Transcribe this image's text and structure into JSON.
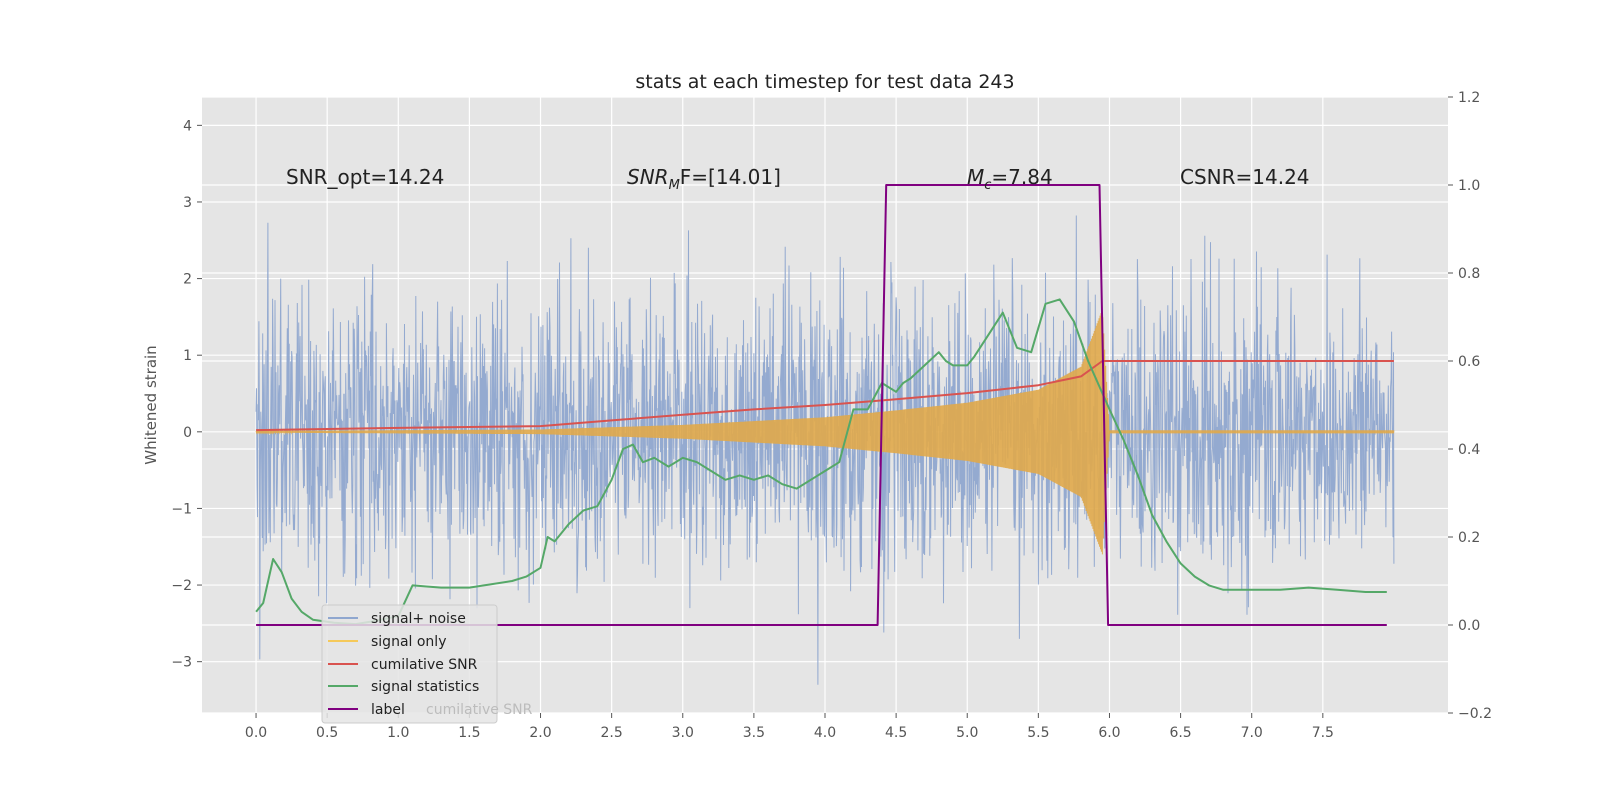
{
  "chart_data": {
    "type": "line",
    "title": "stats at each timestep for test data 243",
    "ylabel": "Whitened strain",
    "xlabel": "",
    "xlim": [
      -0.38,
      8.38
    ],
    "ylim": [
      -3.67,
      4.37
    ],
    "y2lim": [
      -0.2,
      1.2
    ],
    "grid": true,
    "legend_position": "lower-left",
    "x_ticks": [
      0.0,
      0.5,
      1.0,
      1.5,
      2.0,
      2.5,
      3.0,
      3.5,
      4.0,
      4.5,
      5.0,
      5.5,
      6.0,
      6.5,
      7.0,
      7.5
    ],
    "x_tick_labels": [
      "0.0",
      "0.5",
      "1.0",
      "1.5",
      "2.0",
      "2.5",
      "3.0",
      "3.5",
      "4.0",
      "4.5",
      "5.0",
      "5.5",
      "6.0",
      "6.5",
      "7.0",
      "7.5"
    ],
    "y_ticks": [
      -3,
      -2,
      -1,
      0,
      1,
      2,
      3,
      4
    ],
    "y_tick_labels": [
      "−3",
      "−2",
      "−1",
      "0",
      "1",
      "2",
      "3",
      "4"
    ],
    "y2_ticks": [
      -0.2,
      0.0,
      0.2,
      0.4,
      0.6,
      0.8,
      1.0,
      1.2
    ],
    "y2_tick_labels": [
      "−0.2",
      "0.0",
      "0.2",
      "0.4",
      "0.6",
      "0.8",
      "1.0",
      "1.2"
    ],
    "annotations": [
      {
        "text": "SNR_opt=14.24",
        "x": 0.2,
        "y": 3.3
      },
      {
        "text_main": "SNR",
        "text_sub": "M",
        "text_tail": "F=[14.01]",
        "x": 2.6,
        "y": 3.3
      },
      {
        "text_main": "M",
        "text_sub": "c",
        "text_tail": "=7.84",
        "x": 5.0,
        "y": 3.3
      },
      {
        "text": "CSNR=14.24",
        "x": 6.5,
        "y": 3.3
      }
    ],
    "series": [
      {
        "name": "signal+ noise",
        "color": "#8fa7cf",
        "axis": "left",
        "description": "whitened noise plus signal, roughly Gaussian with std ~0.9, t from 0 to 8",
        "x_range": [
          0.0,
          8.0
        ],
        "std": 0.9
      },
      {
        "name": "signal only",
        "color": "#e0a84a",
        "axis": "left",
        "description": "chirp signal; amplitude grows until merger near t=5.95",
        "x": [
          0.0,
          2.0,
          3.0,
          4.0,
          4.5,
          5.0,
          5.5,
          5.8,
          5.95,
          6.0,
          8.0
        ],
        "amplitude": [
          0.01,
          0.03,
          0.09,
          0.19,
          0.28,
          0.38,
          0.55,
          0.85,
          1.6,
          0.02,
          0.02
        ]
      },
      {
        "name": "cumilative SNR",
        "color": "#d9534f",
        "axis": "right",
        "x": [
          0.0,
          1.0,
          2.0,
          2.5,
          3.0,
          3.5,
          4.0,
          4.5,
          5.0,
          5.5,
          5.8,
          5.95,
          6.0,
          8.0
        ],
        "y": [
          0.443,
          0.448,
          0.452,
          0.465,
          0.478,
          0.49,
          0.5,
          0.513,
          0.527,
          0.545,
          0.565,
          0.6,
          0.6,
          0.6
        ]
      },
      {
        "name": "signal statistics",
        "color": "#55a868",
        "axis": "right",
        "x": [
          0.0,
          0.05,
          0.12,
          0.18,
          0.25,
          0.32,
          0.4,
          0.55,
          0.7,
          0.85,
          1.0,
          1.1,
          1.3,
          1.5,
          1.8,
          1.9,
          2.0,
          2.05,
          2.1,
          2.2,
          2.3,
          2.4,
          2.5,
          2.58,
          2.65,
          2.72,
          2.8,
          2.9,
          3.0,
          3.1,
          3.2,
          3.3,
          3.4,
          3.5,
          3.6,
          3.7,
          3.8,
          3.9,
          4.0,
          4.1,
          4.2,
          4.3,
          4.4,
          4.5,
          4.55,
          4.6,
          4.7,
          4.8,
          4.85,
          4.9,
          5.0,
          5.05,
          5.15,
          5.25,
          5.35,
          5.45,
          5.55,
          5.65,
          5.75,
          5.85,
          6.0,
          6.1,
          6.2,
          6.3,
          6.4,
          6.5,
          6.6,
          6.7,
          6.8,
          6.9,
          7.0,
          7.1,
          7.2,
          7.4,
          7.6,
          7.8,
          7.95
        ],
        "y": [
          0.03,
          0.05,
          0.15,
          0.12,
          0.06,
          0.03,
          0.012,
          0.005,
          0.002,
          0.01,
          0.02,
          0.09,
          0.085,
          0.085,
          0.1,
          0.11,
          0.13,
          0.2,
          0.19,
          0.23,
          0.26,
          0.27,
          0.33,
          0.4,
          0.41,
          0.37,
          0.38,
          0.36,
          0.38,
          0.37,
          0.35,
          0.33,
          0.34,
          0.33,
          0.34,
          0.32,
          0.31,
          0.33,
          0.35,
          0.37,
          0.49,
          0.49,
          0.55,
          0.53,
          0.55,
          0.56,
          0.59,
          0.62,
          0.6,
          0.59,
          0.59,
          0.61,
          0.66,
          0.71,
          0.63,
          0.62,
          0.73,
          0.74,
          0.69,
          0.6,
          0.49,
          0.42,
          0.34,
          0.25,
          0.19,
          0.14,
          0.11,
          0.09,
          0.08,
          0.08,
          0.08,
          0.08,
          0.08,
          0.085,
          0.08,
          0.075,
          0.075
        ]
      },
      {
        "name": "label",
        "color": "#800080",
        "axis": "right",
        "x": [
          0.0,
          4.37,
          4.43,
          5.93,
          5.99,
          7.95
        ],
        "y": [
          0.0,
          0.0,
          1.0,
          1.0,
          0.0,
          0.0
        ]
      }
    ],
    "legend_entries": [
      "signal+ noise",
      "signal only",
      "cumilative SNR",
      "signal statistics",
      "label"
    ],
    "legend_hidden_text": "cumilative SNR"
  }
}
